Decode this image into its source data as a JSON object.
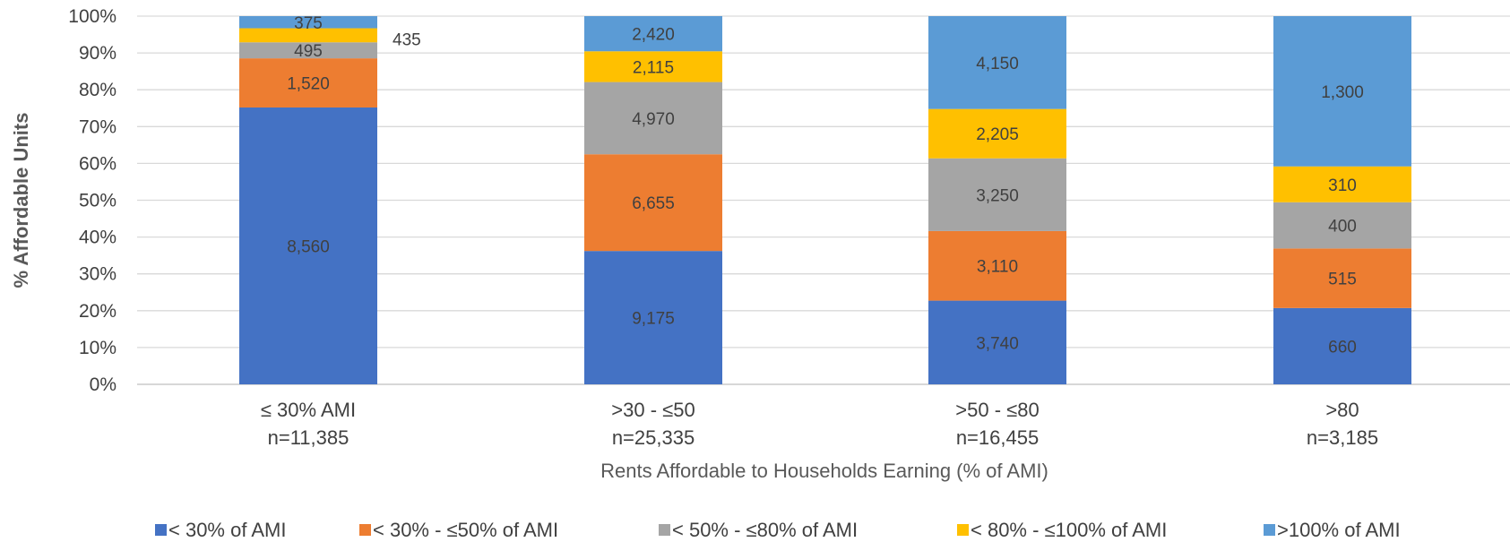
{
  "chart_data": {
    "type": "bar",
    "stacked": "percent",
    "xlabel": "Rents Affordable to Households Earning (% of AMI)",
    "ylabel": "% Affordable Units",
    "ylim": [
      0,
      100
    ],
    "yticks": [
      "0%",
      "10%",
      "20%",
      "30%",
      "40%",
      "50%",
      "60%",
      "70%",
      "80%",
      "90%",
      "100%"
    ],
    "grid": true,
    "legend_position": "bottom",
    "categories": [
      {
        "line1": "≤ 30% AMI",
        "line2": "n=11,385"
      },
      {
        "line1": ">30 - ≤50",
        "line2": "n=25,335"
      },
      {
        "line1": ">50 - ≤80",
        "line2": "n=16,455"
      },
      {
        "line1": ">80",
        "line2": "n=3,185"
      }
    ],
    "series": [
      {
        "name": "< 30% of AMI",
        "color": "#4472C4",
        "values": [
          8560,
          9175,
          3740,
          660
        ],
        "labels": [
          "8,560",
          "9,175",
          "3,740",
          "660"
        ]
      },
      {
        "name": "< 30% - ≤50% of AMI",
        "color": "#ED7D31",
        "values": [
          1520,
          6655,
          3110,
          515
        ],
        "labels": [
          "1,520",
          "6,655",
          "3,110",
          "515"
        ]
      },
      {
        "name": "< 50% - ≤80% of AMI",
        "color": "#A5A5A5",
        "values": [
          495,
          4970,
          3250,
          400
        ],
        "labels": [
          "495",
          "4,970",
          "3,250",
          "400"
        ]
      },
      {
        "name": "< 80% - ≤100% of AMI",
        "color": "#FFC000",
        "values": [
          435,
          2115,
          2205,
          310
        ],
        "labels": [
          "435",
          "2,115",
          "2,205",
          "310"
        ]
      },
      {
        "name": ">100% of AMI",
        "color": "#5B9BD5",
        "values": [
          375,
          2420,
          4150,
          1300
        ],
        "labels": [
          "375",
          "2,420",
          "4,150",
          "1,300"
        ]
      }
    ]
  }
}
